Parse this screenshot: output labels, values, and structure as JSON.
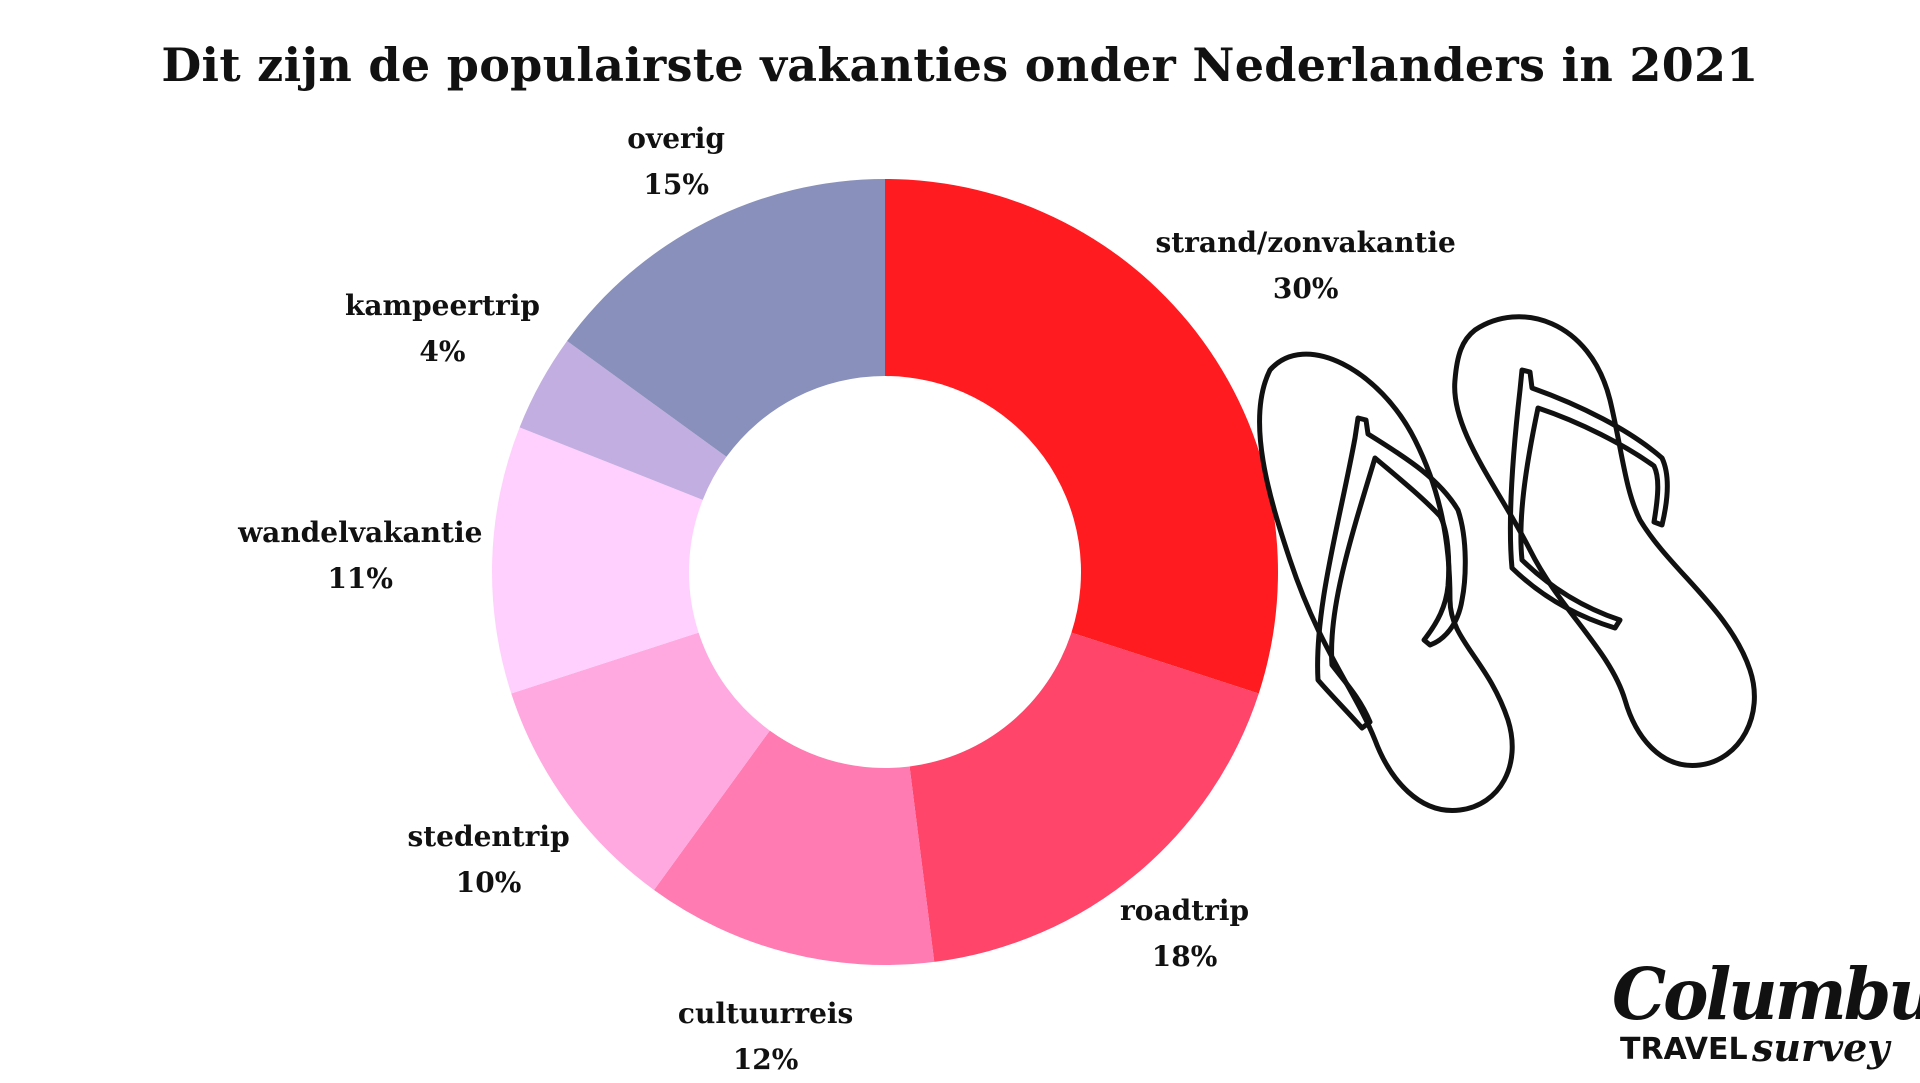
{
  "chart_data": {
    "type": "pie",
    "subtype": "donut",
    "title": "Dit zijn de populairste vakanties onder Nederlanders in 2021",
    "slices": [
      {
        "label": "strand/zonvakantie",
        "value": 30,
        "display": "30%",
        "color": "#ff1b1f"
      },
      {
        "label": "roadtrip",
        "value": 18,
        "display": "18%",
        "color": "#ff4569"
      },
      {
        "label": "cultuurreis",
        "value": 12,
        "display": "12%",
        "color": "#ff7bb1"
      },
      {
        "label": "stedentrip",
        "value": 10,
        "display": "10%",
        "color": "#ffa9e0"
      },
      {
        "label": "wandelvakantie",
        "value": 11,
        "display": "11%",
        "color": "#ffd0fd"
      },
      {
        "label": "kampeertrip",
        "value": 4,
        "display": "4%",
        "color": "#c2aee0"
      },
      {
        "label": "overig",
        "value": 15,
        "display": "15%",
        "color": "#8890bb"
      }
    ],
    "start_angle": "12 o'clock",
    "direction": "clockwise",
    "legend": "none"
  },
  "logo": {
    "brand": "Columbus",
    "tagline_1": "TRAVEL",
    "tagline_2": "survey"
  },
  "illustration": {
    "icon": "flip-flops-icon"
  }
}
